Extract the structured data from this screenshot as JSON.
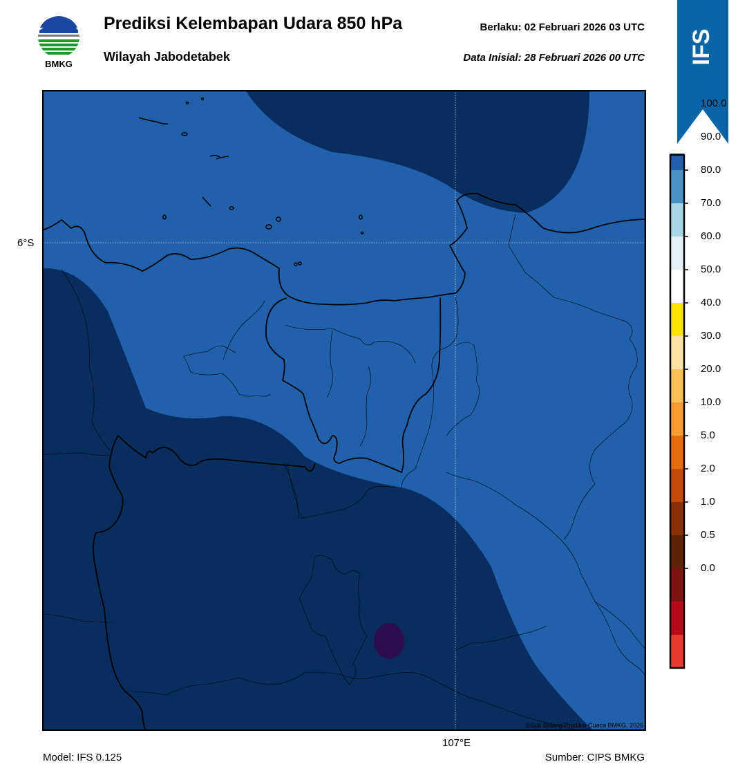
{
  "header": {
    "title": "Prediksi Kelembapan Udara 850 hPa",
    "subtitle": "Wilayah Jabodetabek",
    "valid_time": "Berlaku:  02 Februari 2026 03 UTC",
    "init_time": "Data Inisial:  28 Februari 2026 00 UTC",
    "logo_text": "BMKG",
    "model_badge": "IFS"
  },
  "map": {
    "lat_label": "6°S",
    "lon_label": "107°E",
    "copyright": "©Sub Bidang Prediksi Cuaca BMKG, 2026",
    "colors": {
      "band_80_90": "#2160ab",
      "band_90_100": "#082e60",
      "band_100_plus": "#2d0d4f"
    }
  },
  "colorbar": {
    "ticks": [
      "100.0",
      "90.0",
      "80.0",
      "70.0",
      "60.0",
      "50.0",
      "40.0",
      "30.0",
      "20.0",
      "10.0",
      "5.0",
      "2.0",
      "1.0",
      "0.5",
      "0.0"
    ],
    "colors_top_to_bottom": [
      "#2b0a4c",
      "#082e60",
      "#2160ab",
      "#4793c3",
      "#a9d6e6",
      "#e3eef7",
      "#ffffff",
      "#fde400",
      "#fde4a6",
      "#fdbf58",
      "#fb9c2e",
      "#e46c0b",
      "#c44a05",
      "#8a3005",
      "#5e2407",
      "#7e1313",
      "#b80b18",
      "#ea3a2f"
    ]
  },
  "footer": {
    "model": "Model: IFS 0.125",
    "source": "Sumber: CIPS BMKG"
  }
}
